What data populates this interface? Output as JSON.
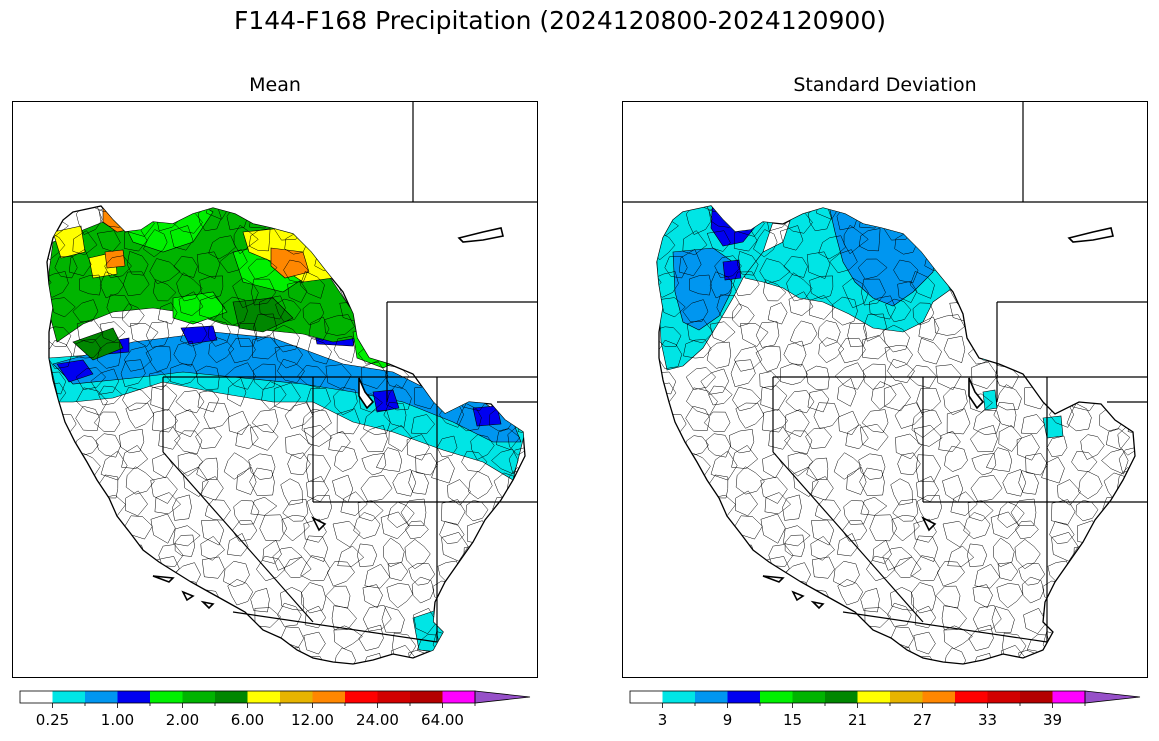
{
  "title": "F144-F168 Precipitation (2024120800-2024120900)",
  "panels": [
    {
      "id": "mean",
      "title": "Mean",
      "colorbar": {
        "colors": [
          "#ffffff",
          "#00e5e5",
          "#0096f0",
          "#0000f0",
          "#00f000",
          "#00b400",
          "#008700",
          "#ffff00",
          "#e6b400",
          "#ff8700",
          "#ff0000",
          "#d20000",
          "#b40000",
          "#ff00ff",
          "#9650c8"
        ],
        "tick_labels": [
          "0.25",
          "1.00",
          "2.00",
          "6.00",
          "12.00",
          "24.00",
          "64.00"
        ],
        "extend": "max"
      }
    },
    {
      "id": "stddev",
      "title": "Standard Deviation",
      "colorbar": {
        "colors": [
          "#ffffff",
          "#00e5e5",
          "#0096f0",
          "#0000f0",
          "#00f000",
          "#00b400",
          "#008700",
          "#ffff00",
          "#e6b400",
          "#ff8700",
          "#ff0000",
          "#d20000",
          "#b40000",
          "#ff00ff",
          "#9650c8"
        ],
        "tick_labels": [
          "3",
          "9",
          "15",
          "21",
          "27",
          "33",
          "39"
        ],
        "extend": "max"
      }
    }
  ]
}
